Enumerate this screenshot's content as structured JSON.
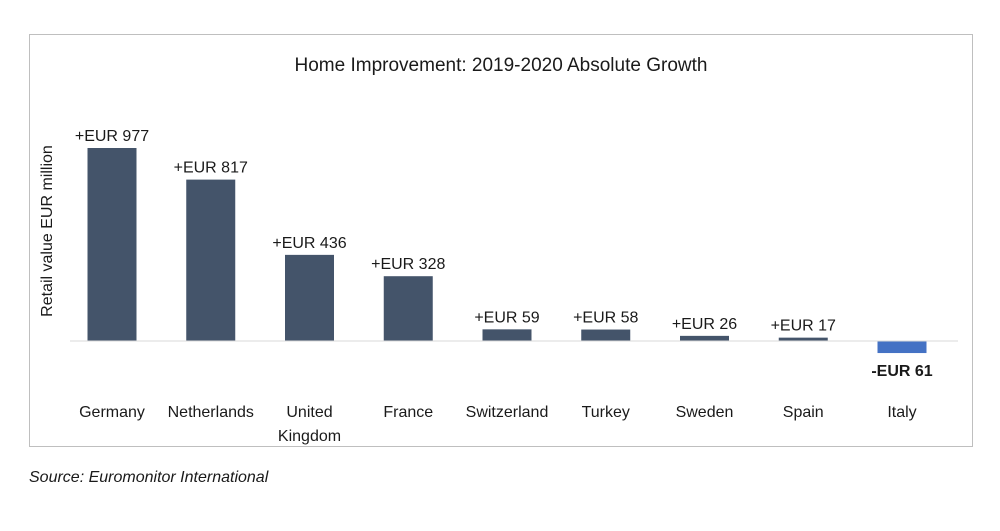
{
  "chart_data": {
    "type": "bar",
    "title": "Home Improvement: 2019-2020 Absolute Growth",
    "ylabel": "Retail value EUR million",
    "xlabel": "",
    "categories": [
      "Germany",
      "Netherlands",
      "United Kingdom",
      "France",
      "Switzerland",
      "Turkey",
      "Sweden",
      "Spain",
      "Italy"
    ],
    "category_lines": [
      [
        "Germany"
      ],
      [
        "Netherlands"
      ],
      [
        "United",
        "Kingdom"
      ],
      [
        "France"
      ],
      [
        "Switzerland"
      ],
      [
        "Turkey"
      ],
      [
        "Sweden"
      ],
      [
        "Spain"
      ],
      [
        "Italy"
      ]
    ],
    "values": [
      977,
      817,
      436,
      328,
      59,
      58,
      26,
      17,
      -61
    ],
    "data_labels": [
      "+EUR 977",
      "+EUR 817",
      "+EUR 436",
      "+EUR 328",
      "+EUR 59",
      "+EUR 58",
      "+EUR 26",
      "+EUR 17",
      "-EUR 61"
    ],
    "colors": {
      "positive": "#44546a",
      "negative": "#4472c4",
      "baseline": "#d9d9d9"
    },
    "grid": false,
    "legend": "none"
  },
  "source": "Source: Euromonitor International"
}
